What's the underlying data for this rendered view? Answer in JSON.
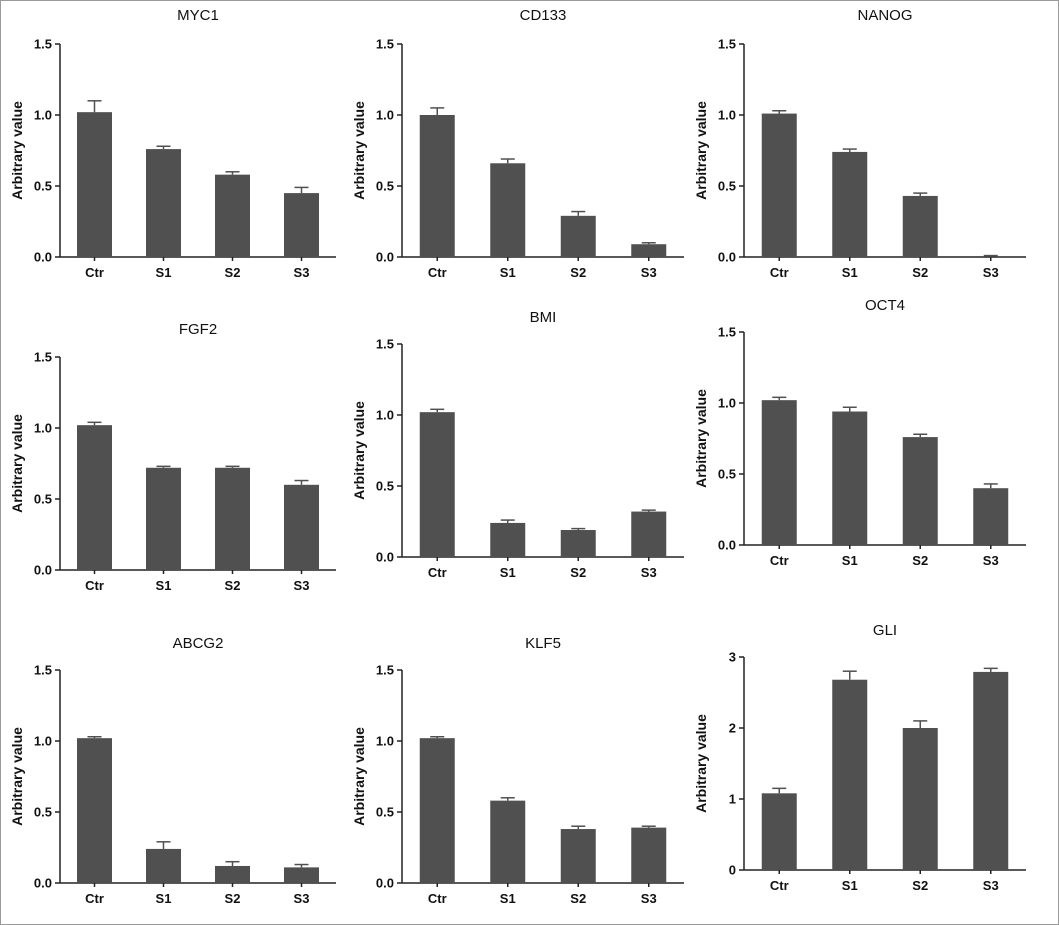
{
  "chart_data": [
    {
      "type": "bar",
      "title": "MYC1",
      "ylabel": "Arbitrary value",
      "xlabel": "",
      "categories": [
        "Ctr",
        "S1",
        "S2",
        "S3"
      ],
      "values": [
        1.02,
        0.76,
        0.58,
        0.45
      ],
      "errors": [
        0.08,
        0.02,
        0.02,
        0.04
      ],
      "ylim": [
        0,
        1.5
      ],
      "yticks": [
        "0.0",
        "0.5",
        "1.0",
        "1.5"
      ],
      "bar_color": "#505050"
    },
    {
      "type": "bar",
      "title": "CD133",
      "ylabel": "Arbitrary value",
      "xlabel": "",
      "categories": [
        "Ctr",
        "S1",
        "S2",
        "S3"
      ],
      "values": [
        1.0,
        0.66,
        0.29,
        0.09
      ],
      "errors": [
        0.05,
        0.03,
        0.03,
        0.01
      ],
      "ylim": [
        0,
        1.5
      ],
      "yticks": [
        "0.0",
        "0.5",
        "1.0",
        "1.5"
      ],
      "bar_color": "#505050"
    },
    {
      "type": "bar",
      "title": "NANOG",
      "ylabel": "Arbitrary value",
      "xlabel": "",
      "categories": [
        "Ctr",
        "S1",
        "S2",
        "S3"
      ],
      "values": [
        1.01,
        0.74,
        0.43,
        0.0
      ],
      "errors": [
        0.02,
        0.02,
        0.02,
        0.01
      ],
      "ylim": [
        0,
        1.5
      ],
      "yticks": [
        "0.0",
        "0.5",
        "1.0",
        "1.5"
      ],
      "bar_color": "#505050"
    },
    {
      "type": "bar",
      "title": "FGF2",
      "ylabel": "Arbitrary value",
      "xlabel": "",
      "categories": [
        "Ctr",
        "S1",
        "S2",
        "S3"
      ],
      "values": [
        1.02,
        0.72,
        0.72,
        0.6
      ],
      "errors": [
        0.02,
        0.01,
        0.01,
        0.03
      ],
      "ylim": [
        0,
        1.5
      ],
      "yticks": [
        "0.0",
        "0.5",
        "1.0",
        "1.5"
      ],
      "bar_color": "#505050"
    },
    {
      "type": "bar",
      "title": "BMI",
      "ylabel": "Arbitrary value",
      "xlabel": "",
      "categories": [
        "Ctr",
        "S1",
        "S2",
        "S3"
      ],
      "values": [
        1.02,
        0.24,
        0.19,
        0.32
      ],
      "errors": [
        0.02,
        0.02,
        0.01,
        0.01
      ],
      "ylim": [
        0,
        1.5
      ],
      "yticks": [
        "0.0",
        "0.5",
        "1.0",
        "1.5"
      ],
      "bar_color": "#505050"
    },
    {
      "type": "bar",
      "title": "OCT4",
      "ylabel": "Arbitrary value",
      "xlabel": "",
      "categories": [
        "Ctr",
        "S1",
        "S2",
        "S3"
      ],
      "values": [
        1.02,
        0.94,
        0.76,
        0.4
      ],
      "errors": [
        0.02,
        0.03,
        0.02,
        0.03
      ],
      "ylim": [
        0,
        1.5
      ],
      "yticks": [
        "0.0",
        "0.5",
        "1.0",
        "1.5"
      ],
      "bar_color": "#505050"
    },
    {
      "type": "bar",
      "title": "ABCG2",
      "ylabel": "Arbitrary value",
      "xlabel": "",
      "categories": [
        "Ctr",
        "S1",
        "S2",
        "S3"
      ],
      "values": [
        1.02,
        0.24,
        0.12,
        0.11
      ],
      "errors": [
        0.01,
        0.05,
        0.03,
        0.02
      ],
      "ylim": [
        0,
        1.5
      ],
      "yticks": [
        "0.0",
        "0.5",
        "1.0",
        "1.5"
      ],
      "bar_color": "#505050"
    },
    {
      "type": "bar",
      "title": "KLF5",
      "ylabel": "Arbitrary value",
      "xlabel": "",
      "categories": [
        "Ctr",
        "S1",
        "S2",
        "S3"
      ],
      "values": [
        1.02,
        0.58,
        0.38,
        0.39
      ],
      "errors": [
        0.01,
        0.02,
        0.02,
        0.01
      ],
      "ylim": [
        0,
        1.5
      ],
      "yticks": [
        "0.0",
        "0.5",
        "1.0",
        "1.5"
      ],
      "bar_color": "#505050"
    },
    {
      "type": "bar",
      "title": "GLI",
      "ylabel": "Arbitrary value",
      "xlabel": "",
      "categories": [
        "Ctr",
        "S1",
        "S2",
        "S3"
      ],
      "values": [
        1.08,
        2.68,
        2.0,
        2.79
      ],
      "errors": [
        0.07,
        0.12,
        0.1,
        0.05
      ],
      "ylim": [
        0,
        3
      ],
      "yticks": [
        "0",
        "1",
        "2",
        "3"
      ],
      "bar_color": "#505050"
    }
  ]
}
